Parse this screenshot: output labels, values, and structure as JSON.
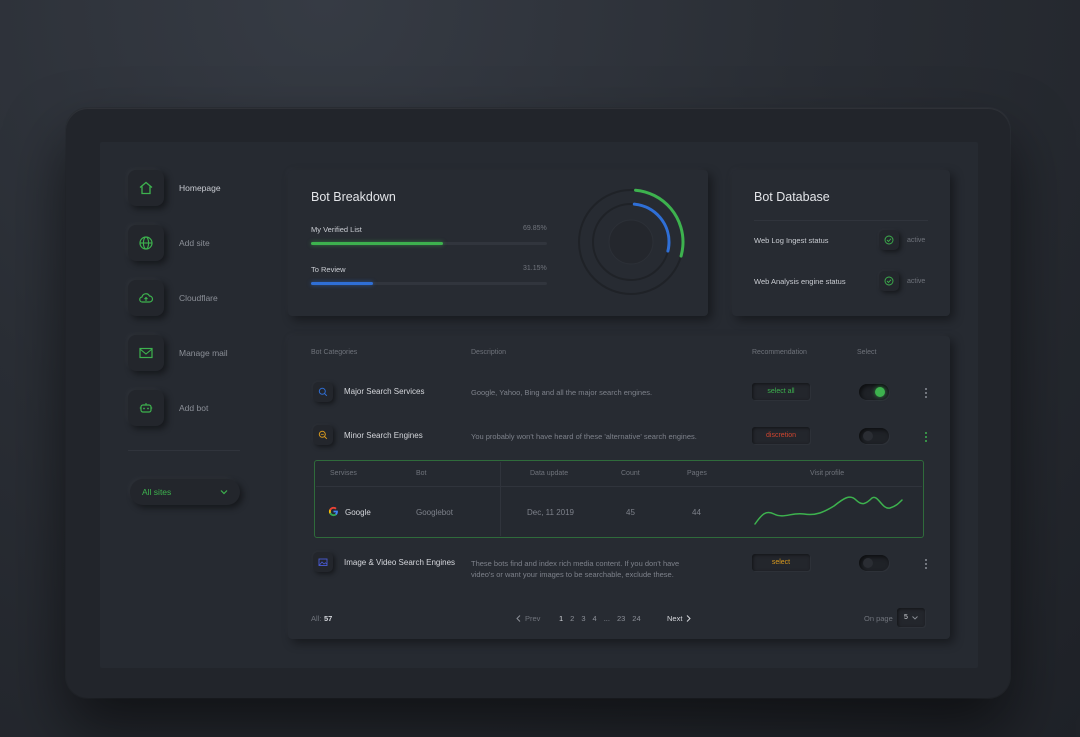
{
  "sidebar": {
    "items": [
      {
        "label": "Homepage",
        "icon": "home-icon",
        "active": true
      },
      {
        "label": "Add site",
        "icon": "globe-icon",
        "active": false
      },
      {
        "label": "Cloudflare",
        "icon": "cloud-upload-icon",
        "active": false
      },
      {
        "label": "Manage mail",
        "icon": "mail-icon",
        "active": false
      },
      {
        "label": "Add bot",
        "icon": "bot-icon",
        "active": false
      }
    ],
    "sites_select": "All sites"
  },
  "bot_breakdown": {
    "title": "Bot Breakdown",
    "verified_label": "My Verified List",
    "verified_value": "69.85%",
    "verified_fraction": 0.6985,
    "review_label": "To Review",
    "review_value": "31.15%",
    "review_fraction": 0.3115
  },
  "bot_database": {
    "title": "Bot Database",
    "rows": [
      {
        "label": "Web Log Ingest status",
        "status": "active"
      },
      {
        "label": "Web Analysis engine status",
        "status": "active"
      }
    ]
  },
  "table": {
    "headers": {
      "category": "Bot Categories",
      "description": "Description",
      "recommendation": "Recommendation",
      "select": "Select"
    },
    "rows": [
      {
        "name": "Major Search Services",
        "description": "Google, Yahoo, Bing and all the major search engines.",
        "recommendation": "select all",
        "selected": true
      },
      {
        "name": "Minor Search Engines",
        "description": "You probably won't have heard of these 'alternative' search engines.",
        "recommendation": "discretion",
        "selected": false
      },
      {
        "name": "Image & Video Search Engines",
        "description_line1": "These bots find and index rich media content. If you don't have",
        "description_line2": "video's or want your images to be searchable, exclude these.",
        "recommendation": "select",
        "selected": false
      }
    ],
    "sub_table": {
      "headers": {
        "services": "Servises",
        "bot": "Bot",
        "date": "Data update",
        "count": "Count",
        "pages": "Pages",
        "visit": "Visit profile"
      },
      "row": {
        "service": "Google",
        "bot": "Googlebot",
        "date": "Dec, 11 2019",
        "count": "45",
        "pages": "44"
      }
    }
  },
  "footer": {
    "all_label": "All:",
    "all_count": "57",
    "prev": "Prev",
    "next": "Next",
    "pages": [
      "1",
      "2",
      "3",
      "4",
      "...",
      "23",
      "24"
    ],
    "current_page": "1",
    "on_page_label": "On page",
    "on_page_value": "5"
  },
  "colors": {
    "green": "#3db24e",
    "blue": "#2f6fd6",
    "red": "#d0452f",
    "orange": "#d99a1e"
  }
}
